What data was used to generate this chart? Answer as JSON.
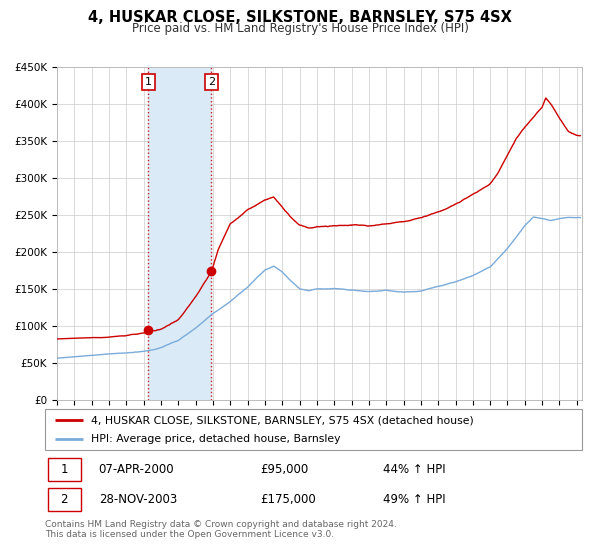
{
  "title": "4, HUSKAR CLOSE, SILKSTONE, BARNSLEY, S75 4SX",
  "subtitle": "Price paid vs. HM Land Registry's House Price Index (HPI)",
  "legend_line1": "4, HUSKAR CLOSE, SILKSTONE, BARNSLEY, S75 4SX (detached house)",
  "legend_line2": "HPI: Average price, detached house, Barnsley",
  "transaction1_date": "07-APR-2000",
  "transaction1_price": 95000,
  "transaction1_pct": "44%",
  "transaction2_date": "28-NOV-2003",
  "transaction2_price": 175000,
  "transaction2_pct": "49%",
  "footer": "Contains HM Land Registry data © Crown copyright and database right 2024.\nThis data is licensed under the Open Government Licence v3.0.",
  "hpi_color": "#7aabda",
  "price_color": "#cc0000",
  "bg_color": "#ffffff",
  "grid_color": "#cccccc",
  "shade_color": "#daeaf7",
  "ylim_min": 0,
  "ylim_max": 450000,
  "year_start": 1995,
  "year_end": 2025,
  "t1_year": 2000.27,
  "t2_year": 2003.91,
  "t1_price": 95000,
  "t2_price": 175000,
  "hpi_anchors_x": [
    1995.0,
    1996.0,
    1997.0,
    1998.0,
    1999.0,
    2000.0,
    2001.0,
    2002.0,
    2003.0,
    2004.0,
    2005.0,
    2006.0,
    2007.0,
    2007.5,
    2008.0,
    2008.5,
    2009.0,
    2009.5,
    2010.0,
    2011.0,
    2012.0,
    2013.0,
    2014.0,
    2015.0,
    2016.0,
    2017.0,
    2018.0,
    2019.0,
    2020.0,
    2020.5,
    2021.0,
    2021.5,
    2022.0,
    2022.5,
    2023.0,
    2023.5,
    2024.0,
    2024.5,
    2025.0
  ],
  "hpi_anchors_y": [
    57000,
    59000,
    61000,
    63000,
    65000,
    68000,
    73000,
    83000,
    100000,
    120000,
    135000,
    155000,
    178000,
    183000,
    175000,
    163000,
    153000,
    150000,
    152000,
    153000,
    151000,
    150000,
    152000,
    150000,
    152000,
    158000,
    164000,
    172000,
    183000,
    195000,
    207000,
    222000,
    238000,
    250000,
    248000,
    245000,
    248000,
    250000,
    250000
  ],
  "price_anchors_x": [
    1995.0,
    1996.0,
    1997.0,
    1998.0,
    1999.0,
    2000.0,
    2000.27,
    2001.0,
    2002.0,
    2003.0,
    2003.91,
    2004.3,
    2005.0,
    2006.0,
    2007.0,
    2007.5,
    2008.0,
    2008.5,
    2009.0,
    2009.5,
    2010.0,
    2011.0,
    2012.0,
    2013.0,
    2014.0,
    2015.0,
    2016.0,
    2017.0,
    2018.0,
    2019.0,
    2019.5,
    2020.0,
    2020.5,
    2021.0,
    2021.5,
    2022.0,
    2022.5,
    2023.0,
    2023.2,
    2023.5,
    2024.0,
    2024.5,
    2025.0
  ],
  "price_anchors_y": [
    83000,
    84000,
    85000,
    86000,
    88000,
    92000,
    95000,
    98000,
    110000,
    140000,
    175000,
    205000,
    240000,
    260000,
    272000,
    275000,
    262000,
    248000,
    237000,
    233000,
    235000,
    237000,
    238000,
    237000,
    240000,
    243000,
    248000,
    255000,
    265000,
    278000,
    285000,
    292000,
    308000,
    330000,
    352000,
    368000,
    382000,
    395000,
    408000,
    400000,
    380000,
    362000,
    358000
  ]
}
